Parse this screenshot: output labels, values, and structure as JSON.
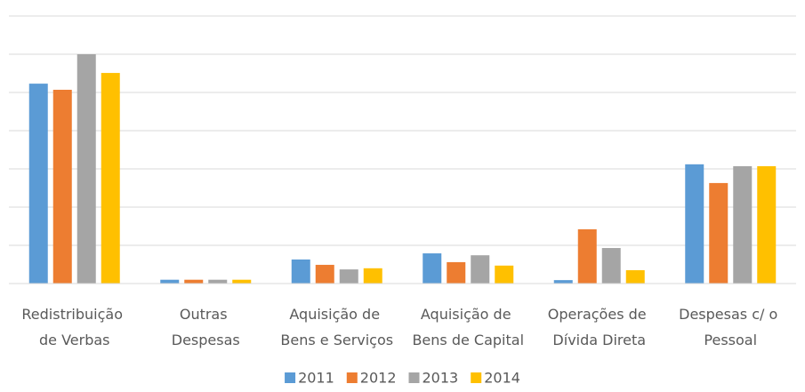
{
  "chart_data": {
    "type": "bar",
    "categories": [
      "Redistribuição de Verbas",
      "Outras Despesas",
      "Aquisição de Bens e Serviços",
      "Aquisição de Bens de Capital",
      "Operações de Dívida Direta",
      "Despesas c/ o Pessoal"
    ],
    "series": [
      {
        "name": "2011",
        "color": "#5b9bd5",
        "values": [
          5.23,
          0.1,
          0.63,
          0.79,
          0.09,
          3.12
        ]
      },
      {
        "name": "2012",
        "color": "#ed7d31",
        "values": [
          5.07,
          0.1,
          0.49,
          0.56,
          1.42,
          2.63
        ]
      },
      {
        "name": "2013",
        "color": "#a5a5a5",
        "values": [
          6.0,
          0.1,
          0.37,
          0.74,
          0.93,
          3.07
        ]
      },
      {
        "name": "2014",
        "color": "#ffc000",
        "values": [
          5.51,
          0.1,
          0.4,
          0.47,
          0.35,
          3.07
        ]
      }
    ],
    "ylim": [
      0,
      7
    ],
    "yticks": [
      0,
      1,
      2,
      3,
      4,
      5,
      6,
      7
    ],
    "grid": true,
    "legend": "bottom"
  }
}
